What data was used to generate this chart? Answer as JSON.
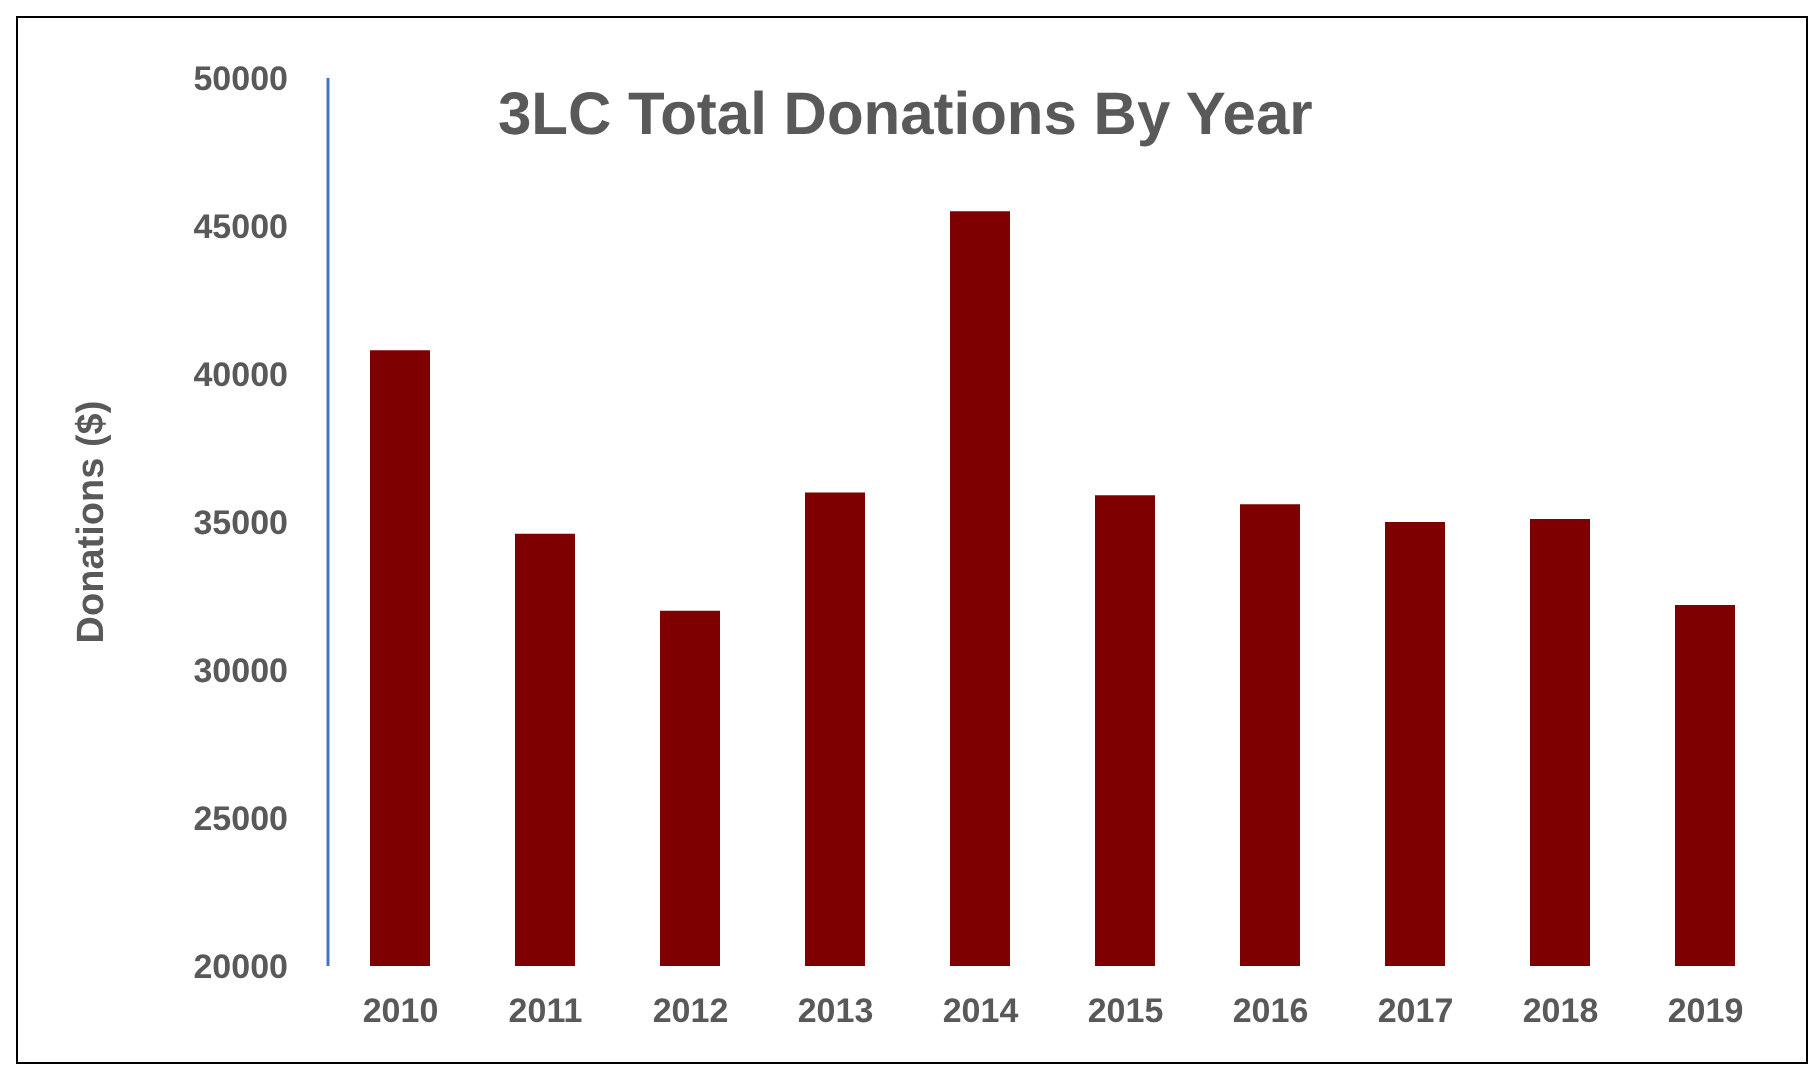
{
  "chart_data": {
    "type": "bar",
    "title": "3LC Total Donations By Year",
    "ylabel": "Donations ($)",
    "categories": [
      "2010",
      "2011",
      "2012",
      "2013",
      "2014",
      "2015",
      "2016",
      "2017",
      "2018",
      "2019"
    ],
    "values": [
      40800,
      34600,
      32000,
      36000,
      45500,
      35900,
      35600,
      35000,
      35100,
      32200
    ],
    "color": "#7f0000",
    "ylim": [
      20000,
      50000
    ],
    "yticks": [
      20000,
      25000,
      30000,
      35000,
      40000,
      45000,
      50000
    ],
    "grid": false,
    "legend": false
  }
}
